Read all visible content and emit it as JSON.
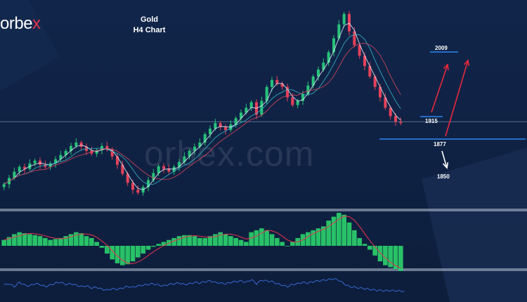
{
  "brand": {
    "logo_main": "orbe",
    "logo_accent": "x",
    "watermark": "orbex.com"
  },
  "title": {
    "line1": "Gold",
    "line2": "H4 Chart"
  },
  "colors": {
    "up": "#27c27a",
    "down": "#e4415a",
    "ma_fast": "#e6f2ff",
    "ma_mid": "#35b6c9",
    "ma_slow": "#d8465a",
    "level": "#2e86f0",
    "arrow_up": "#e8283c",
    "arrow_down": "#ffffff",
    "histogram": "#2bd36b",
    "signal": "#e8344e",
    "oscillator": "#3b6fe0"
  },
  "levels": [
    {
      "label": "2009",
      "price": 2009,
      "style": "short-line-under-label"
    },
    {
      "label": "1915",
      "price": 1915,
      "style": "short-line-under-label"
    },
    {
      "label": "1877",
      "price": 1877,
      "style": "long-line-above-label"
    },
    {
      "label": "1850",
      "price": 1850,
      "style": "label-below-arrow"
    }
  ],
  "chart_data": [
    {
      "type": "candlestick",
      "panel": "price",
      "title": "Gold H4 Chart",
      "ylim": [
        1800,
        2085
      ],
      "grid": false,
      "horizontal_line": 1920,
      "series": [
        {
          "name": "close",
          "values": [
            1830,
            1839,
            1848,
            1855,
            1852,
            1860,
            1864,
            1858,
            1855,
            1860,
            1866,
            1872,
            1878,
            1885,
            1890,
            1884,
            1878,
            1874,
            1879,
            1885,
            1880,
            1870,
            1858,
            1845,
            1832,
            1822,
            1818,
            1826,
            1836,
            1846,
            1856,
            1852,
            1848,
            1855,
            1862,
            1870,
            1878,
            1884,
            1890,
            1902,
            1910,
            1918,
            1912,
            1908,
            1916,
            1925,
            1933,
            1940,
            1948,
            1930,
            1950,
            1970,
            1980,
            1975,
            1970,
            1955,
            1944,
            1950,
            1960,
            1972,
            1985,
            1995,
            2005,
            2020,
            2040,
            2060,
            2075,
            2050,
            2030,
            2015,
            2000,
            1985,
            1970,
            1955,
            1940,
            1928,
            1920,
            1918
          ]
        },
        {
          "name": "ma_fast"
        },
        {
          "name": "ma_mid"
        },
        {
          "name": "ma_slow"
        }
      ]
    },
    {
      "type": "bar",
      "panel": "histogram",
      "series": [
        {
          "name": "histogram",
          "values": [
            0.3,
            0.45,
            0.6,
            0.7,
            0.65,
            0.6,
            0.55,
            0.5,
            0.4,
            0.3,
            0.35,
            0.4,
            0.5,
            0.6,
            0.7,
            0.65,
            0.5,
            0.4,
            0.2,
            -0.1,
            -0.4,
            -0.7,
            -0.9,
            -1.0,
            -0.95,
            -0.8,
            -0.6,
            -0.4,
            -0.2,
            -0.05,
            0.1,
            0.2,
            0.3,
            0.4,
            0.5,
            0.55,
            0.55,
            0.5,
            0.4,
            0.4,
            0.5,
            0.6,
            0.7,
            0.6,
            0.5,
            0.4,
            0.3,
            0.2,
            0.7,
            0.8,
            0.9,
            0.8,
            0.6,
            0.4,
            0.2,
            0.0,
            0.2,
            0.4,
            0.6,
            0.7,
            0.8,
            0.9,
            1.0,
            1.3,
            1.5,
            1.7,
            1.6,
            1.2,
            0.8,
            0.4,
            0.1,
            -0.2,
            -0.5,
            -0.8,
            -1.0,
            -1.1,
            -1.2,
            -1.3
          ]
        },
        {
          "name": "signal"
        }
      ]
    },
    {
      "type": "line",
      "panel": "oscillator",
      "series": [
        {
          "name": "oscillator",
          "values": [
            0.5,
            0.6,
            0.4,
            0.7,
            0.5,
            0.45,
            0.6,
            0.55,
            0.4,
            0.5,
            0.65,
            0.7,
            0.55,
            0.6,
            0.5,
            0.4,
            0.45,
            0.3,
            0.35,
            0.2,
            0.15,
            0.25,
            0.2,
            0.3,
            0.4,
            0.35,
            0.45,
            0.5,
            0.55,
            0.6,
            0.5,
            0.45,
            0.55,
            0.6,
            0.65,
            0.55,
            0.6,
            0.7,
            0.65,
            0.75,
            0.8,
            0.7,
            0.65,
            0.6,
            0.7,
            0.75,
            0.8,
            0.7,
            0.9,
            0.6,
            0.85,
            0.8,
            0.75,
            0.6,
            0.5,
            0.4,
            0.55,
            0.6,
            0.7,
            0.65,
            0.75,
            0.8,
            0.85,
            0.9,
            0.95,
            0.85,
            0.6,
            0.4,
            0.35,
            0.3,
            0.25,
            0.2,
            0.15,
            0.12,
            0.1,
            0.12,
            0.1,
            0.08
          ]
        }
      ]
    }
  ]
}
